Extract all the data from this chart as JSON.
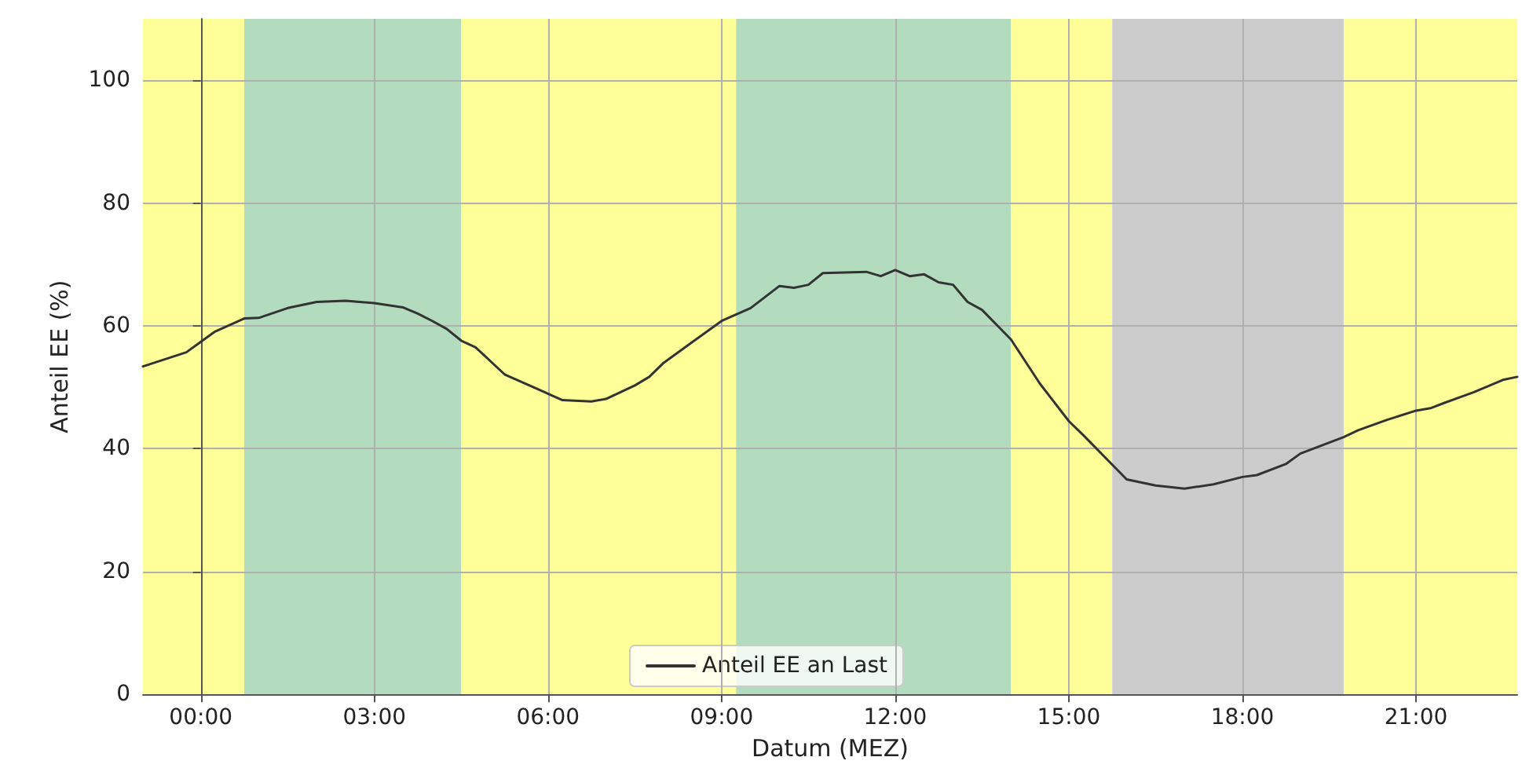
{
  "chart_data": {
    "type": "line",
    "xlabel": "Datum (MEZ)",
    "ylabel": "Anteil EE (%)",
    "x": [
      -1,
      -0.25,
      0,
      0.25,
      0.75,
      1,
      1.5,
      2,
      2.5,
      3,
      3.5,
      3.75,
      4,
      4.25,
      4.5,
      4.75,
      5.25,
      5.75,
      6.25,
      6.75,
      7,
      7.5,
      7.75,
      8,
      8.5,
      9,
      9.5,
      10,
      10.25,
      10.5,
      10.75,
      11.5,
      11.75,
      12,
      12.25,
      12.5,
      12.75,
      13,
      13.25,
      13.5,
      14,
      14.5,
      15,
      15.25,
      16,
      16.5,
      17,
      17.5,
      18,
      18.25,
      18.75,
      19,
      19.75,
      20,
      20.5,
      21,
      21.25,
      21.5,
      22,
      22.5,
      22.75
    ],
    "series": [
      {
        "name": "Anteil EE an Last",
        "color": "#333333",
        "values": [
          53.4,
          55.7,
          57.4,
          59.1,
          61.2,
          61.3,
          62.9,
          63.9,
          64.1,
          63.7,
          63.0,
          62.0,
          60.8,
          59.5,
          57.6,
          56.5,
          52.1,
          50.0,
          47.9,
          47.7,
          48.1,
          50.3,
          51.7,
          54.0,
          57.4,
          60.8,
          62.9,
          66.5,
          66.2,
          66.7,
          68.6,
          68.8,
          68.1,
          69.1,
          68.1,
          68.4,
          67.1,
          66.7,
          63.9,
          62.6,
          57.8,
          50.6,
          44.5,
          42.2,
          35.0,
          34.0,
          33.5,
          34.2,
          35.4,
          35.7,
          37.5,
          39.2,
          41.9,
          43.0,
          44.7,
          46.2,
          46.6,
          47.5,
          49.2,
          51.2,
          51.7
        ]
      }
    ],
    "xlim": [
      -1,
      22.75
    ],
    "xticks": [
      {
        "value": 0,
        "label": "00:00"
      },
      {
        "value": 3,
        "label": "03:00"
      },
      {
        "value": 6,
        "label": "06:00"
      },
      {
        "value": 9,
        "label": "09:00"
      },
      {
        "value": 12,
        "label": "12:00"
      },
      {
        "value": 15,
        "label": "15:00"
      },
      {
        "value": 18,
        "label": "18:00"
      },
      {
        "value": 21,
        "label": "21:00"
      }
    ],
    "ylim": [
      0,
      110
    ],
    "yticks": [
      0,
      20,
      40,
      60,
      80,
      100
    ],
    "bands": [
      {
        "axis": "x",
        "from": -1,
        "to": 0.75,
        "color": "#ffff99"
      },
      {
        "axis": "x",
        "from": 0.75,
        "to": 4.5,
        "color": "#b3dcbf"
      },
      {
        "axis": "x",
        "from": 4.5,
        "to": 9.25,
        "color": "#ffff99"
      },
      {
        "axis": "x",
        "from": 9.25,
        "to": 14,
        "color": "#b3dcbf"
      },
      {
        "axis": "x",
        "from": 14,
        "to": 15.75,
        "color": "#ffff99"
      },
      {
        "axis": "x",
        "from": 15.75,
        "to": 19.75,
        "color": "#cccccc"
      },
      {
        "axis": "x",
        "from": 19.75,
        "to": 22.75,
        "color": "#ffff99"
      }
    ],
    "grid": true,
    "legend": "bottom",
    "marker": "none",
    "line_style": "solid"
  }
}
